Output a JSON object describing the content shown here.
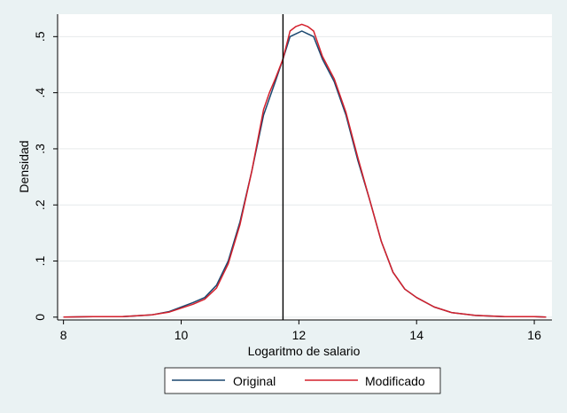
{
  "chart_data": {
    "type": "line",
    "xlabel": "Logaritmo de salario",
    "ylabel": "Densidad",
    "xlim": [
      7.9,
      16.3
    ],
    "ylim": [
      -0.005,
      0.54
    ],
    "x_ticks": [
      8,
      10,
      12,
      14,
      16
    ],
    "x_tick_labels": [
      "8",
      "10",
      "12",
      "14",
      "16"
    ],
    "y_ticks": [
      0,
      0.1,
      0.2,
      0.3,
      0.4,
      0.5
    ],
    "y_tick_labels": [
      "0",
      ".1",
      ".2",
      ".3",
      ".4",
      ".5"
    ],
    "grid": "horizontal",
    "legend_position": "bottom",
    "reference_line_x": 11.73,
    "series": [
      {
        "name": "Original",
        "color": "#1a476f",
        "x": [
          8.0,
          8.5,
          9.0,
          9.5,
          9.8,
          10.0,
          10.2,
          10.4,
          10.6,
          10.8,
          11.0,
          11.2,
          11.4,
          11.5,
          11.6,
          11.73,
          11.85,
          11.95,
          12.05,
          12.15,
          12.25,
          12.4,
          12.6,
          12.8,
          13.0,
          13.2,
          13.4,
          13.6,
          13.8,
          14.0,
          14.3,
          14.6,
          15.0,
          15.5,
          16.0,
          16.2
        ],
        "values": [
          0.0,
          0.001,
          0.001,
          0.004,
          0.01,
          0.018,
          0.026,
          0.035,
          0.057,
          0.1,
          0.17,
          0.26,
          0.36,
          0.39,
          0.42,
          0.46,
          0.5,
          0.505,
          0.51,
          0.505,
          0.5,
          0.46,
          0.42,
          0.36,
          0.28,
          0.21,
          0.135,
          0.08,
          0.05,
          0.035,
          0.018,
          0.008,
          0.003,
          0.001,
          0.001,
          0.0
        ]
      },
      {
        "name": "Modificado",
        "color": "#d4202c",
        "x": [
          8.0,
          8.5,
          9.0,
          9.5,
          9.8,
          10.0,
          10.2,
          10.4,
          10.6,
          10.8,
          11.0,
          11.2,
          11.4,
          11.5,
          11.6,
          11.73,
          11.85,
          11.95,
          12.05,
          12.15,
          12.25,
          12.4,
          12.6,
          12.8,
          13.0,
          13.2,
          13.4,
          13.6,
          13.8,
          14.0,
          14.3,
          14.6,
          15.0,
          15.5,
          16.0,
          16.2
        ],
        "values": [
          0.0,
          0.001,
          0.001,
          0.004,
          0.009,
          0.016,
          0.023,
          0.032,
          0.052,
          0.095,
          0.165,
          0.26,
          0.37,
          0.4,
          0.425,
          0.46,
          0.51,
          0.518,
          0.522,
          0.518,
          0.51,
          0.465,
          0.425,
          0.365,
          0.285,
          0.21,
          0.135,
          0.08,
          0.05,
          0.035,
          0.018,
          0.008,
          0.003,
          0.001,
          0.001,
          0.0
        ]
      }
    ]
  }
}
